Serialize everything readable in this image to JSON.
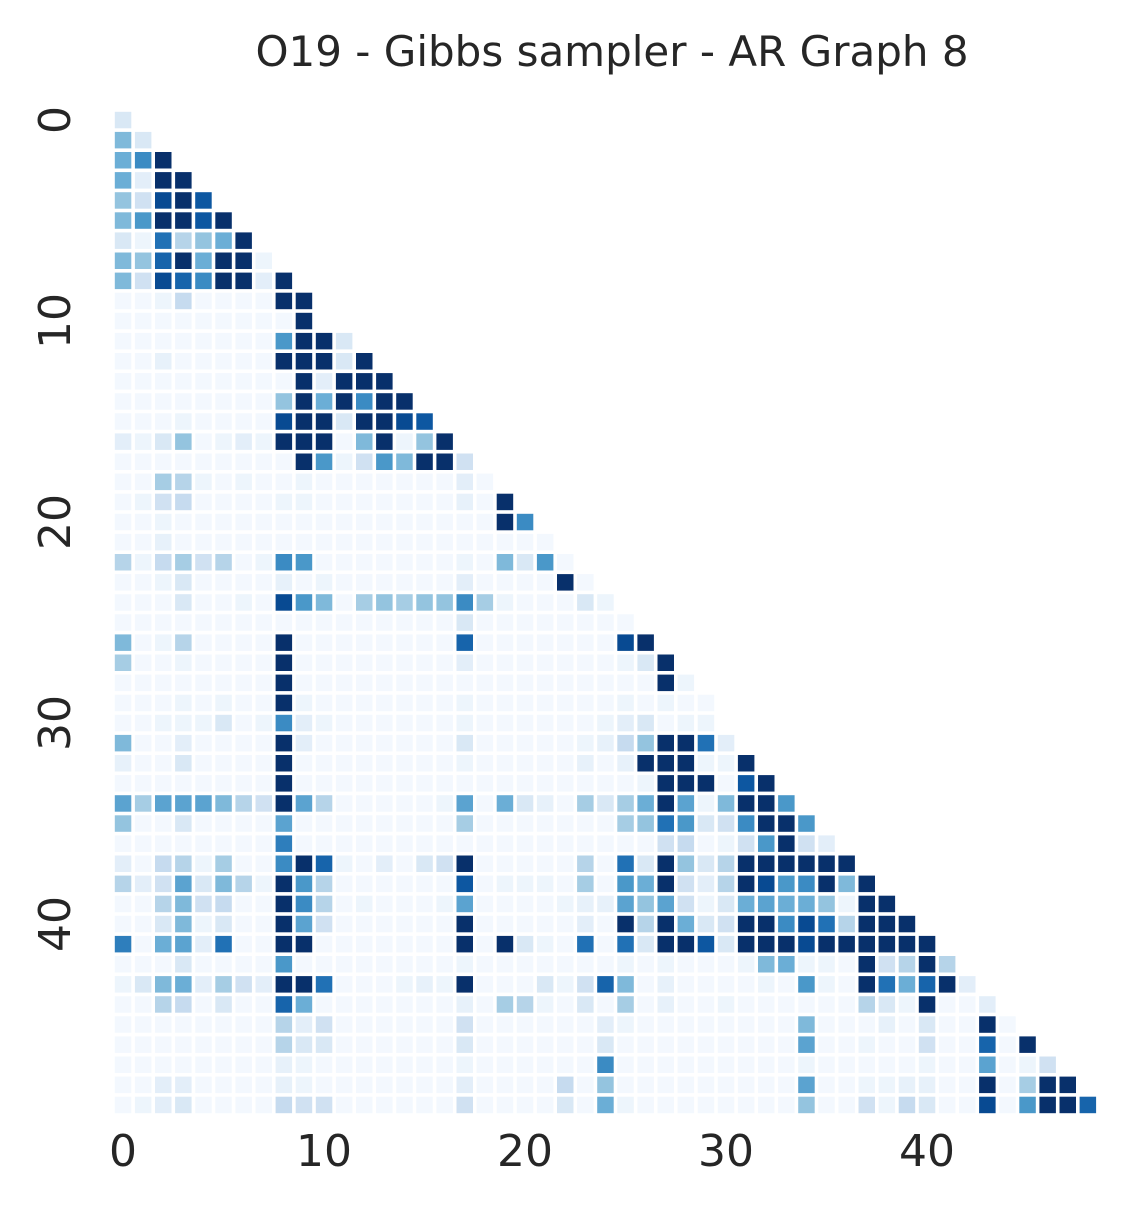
{
  "chart_data": {
    "type": "heatmap",
    "title": "O19 - Gibbs sampler - AR Graph 8",
    "xlabel": "",
    "ylabel": "",
    "size": 49,
    "mask": "lower-triangle-including-diagonal",
    "colormap": "Blues",
    "value_range": [
      0,
      1
    ],
    "x_ticks": [
      0,
      10,
      20,
      30,
      40
    ],
    "y_ticks": [
      0,
      10,
      20,
      30,
      40
    ],
    "x_tick_labels": [
      "0",
      "10",
      "20",
      "30",
      "40"
    ],
    "y_tick_labels": [
      "0",
      "10",
      "20",
      "30",
      "40"
    ],
    "grid": false,
    "colorbar": false,
    "rows": [
      [
        0.15
      ],
      [
        0.45,
        0.15
      ],
      [
        0.5,
        0.65,
        1.0
      ],
      [
        0.5,
        0.1,
        1.0,
        1.0
      ],
      [
        0.4,
        0.2,
        0.9,
        1.0,
        0.85
      ],
      [
        0.45,
        0.6,
        1.0,
        1.0,
        0.85,
        1.0
      ],
      [
        0.15,
        0.05,
        0.75,
        0.3,
        0.4,
        0.5,
        1.0
      ],
      [
        0.45,
        0.4,
        0.8,
        1.0,
        0.5,
        1.0,
        1.0,
        0.05
      ],
      [
        0.45,
        0.2,
        0.9,
        0.8,
        0.65,
        1.0,
        1.0,
        0.1,
        1.0
      ],
      [
        0.02,
        0.02,
        0.05,
        0.25,
        0.02,
        0.02,
        0.02,
        0.02,
        1.0,
        1.0
      ],
      [
        0.02,
        0.02,
        0.02,
        0.02,
        0.02,
        0.02,
        0.02,
        0.02,
        0.02,
        1.0
      ],
      [
        0.02,
        0.02,
        0.02,
        0.02,
        0.02,
        0.02,
        0.02,
        0.02,
        0.6,
        1.0,
        1.0,
        0.15
      ],
      [
        0.02,
        0.02,
        0.08,
        0.02,
        0.02,
        0.02,
        0.02,
        0.02,
        1.0,
        1.0,
        1.0,
        0.15,
        1.0
      ],
      [
        0.02,
        0.02,
        0.02,
        0.02,
        0.02,
        0.02,
        0.02,
        0.02,
        0.02,
        1.0,
        0.1,
        1.0,
        1.0,
        1.0
      ],
      [
        0.02,
        0.02,
        0.02,
        0.02,
        0.02,
        0.02,
        0.02,
        0.02,
        0.4,
        1.0,
        0.5,
        1.0,
        0.65,
        1.0,
        1.0
      ],
      [
        0.02,
        0.02,
        0.02,
        0.05,
        0.02,
        0.02,
        0.02,
        0.02,
        0.9,
        1.0,
        1.0,
        0.15,
        1.0,
        1.0,
        0.9,
        0.85
      ],
      [
        0.1,
        0.05,
        0.15,
        0.4,
        0.02,
        0.05,
        0.1,
        0.05,
        1.0,
        1.0,
        1.0,
        0.02,
        0.45,
        1.0,
        0.05,
        0.4,
        1.0
      ],
      [
        0.02,
        0.02,
        0.02,
        0.02,
        0.02,
        0.02,
        0.02,
        0.02,
        0.02,
        1.0,
        0.6,
        0.05,
        0.2,
        0.6,
        0.45,
        1.0,
        1.0,
        0.2
      ],
      [
        0.02,
        0.02,
        0.35,
        0.3,
        0.05,
        0.02,
        0.05,
        0.02,
        0.02,
        0.05,
        0.02,
        0.02,
        0.02,
        0.02,
        0.02,
        0.02,
        0.02,
        0.1,
        0.02
      ],
      [
        0.02,
        0.05,
        0.2,
        0.25,
        0.02,
        0.02,
        0.02,
        0.02,
        0.05,
        0.05,
        0.02,
        0.02,
        0.02,
        0.02,
        0.02,
        0.02,
        0.02,
        0.08,
        0.02,
        1.0
      ],
      [
        0.02,
        0.02,
        0.05,
        0.02,
        0.02,
        0.02,
        0.02,
        0.02,
        0.02,
        0.02,
        0.02,
        0.02,
        0.02,
        0.02,
        0.02,
        0.02,
        0.02,
        0.02,
        0.02,
        1.0,
        0.65
      ],
      [
        0.02,
        0.02,
        0.08,
        0.02,
        0.02,
        0.02,
        0.02,
        0.02,
        0.02,
        0.02,
        0.02,
        0.02,
        0.02,
        0.02,
        0.02,
        0.02,
        0.02,
        0.02,
        0.02,
        0.02,
        0.02,
        0.02
      ],
      [
        0.3,
        0.05,
        0.25,
        0.35,
        0.2,
        0.3,
        0.02,
        0.05,
        0.65,
        0.6,
        0.02,
        0.02,
        0.02,
        0.02,
        0.02,
        0.02,
        0.02,
        0.05,
        0.02,
        0.45,
        0.15,
        0.6,
        0.02
      ],
      [
        0.02,
        0.02,
        0.05,
        0.15,
        0.02,
        0.02,
        0.02,
        0.02,
        0.08,
        0.02,
        0.05,
        0.02,
        0.02,
        0.02,
        0.02,
        0.02,
        0.02,
        0.1,
        0.02,
        0.02,
        0.02,
        0.02,
        1.0,
        0.02
      ],
      [
        0.02,
        0.02,
        0.02,
        0.15,
        0.02,
        0.02,
        0.05,
        0.02,
        0.9,
        0.6,
        0.45,
        0.02,
        0.35,
        0.4,
        0.35,
        0.4,
        0.4,
        0.65,
        0.35,
        0.05,
        0.02,
        0.02,
        0.02,
        0.15,
        0.05
      ],
      [
        0.02,
        0.02,
        0.02,
        0.02,
        0.02,
        0.02,
        0.02,
        0.02,
        0.02,
        0.02,
        0.02,
        0.02,
        0.02,
        0.02,
        0.02,
        0.02,
        0.02,
        0.15,
        0.02,
        0.02,
        0.02,
        0.02,
        0.02,
        0.02,
        0.02,
        0.02
      ],
      [
        0.45,
        0.02,
        0.05,
        0.3,
        0.02,
        0.02,
        0.02,
        0.02,
        1.0,
        0.02,
        0.02,
        0.02,
        0.02,
        0.02,
        0.02,
        0.02,
        0.02,
        0.8,
        0.02,
        0.02,
        0.02,
        0.02,
        0.02,
        0.02,
        0.02,
        0.9,
        1.0
      ],
      [
        0.35,
        0.02,
        0.02,
        0.05,
        0.02,
        0.02,
        0.02,
        0.02,
        1.0,
        0.02,
        0.02,
        0.02,
        0.02,
        0.02,
        0.02,
        0.02,
        0.02,
        0.1,
        0.02,
        0.02,
        0.02,
        0.02,
        0.02,
        0.02,
        0.02,
        0.05,
        0.15,
        1.0
      ],
      [
        0.02,
        0.02,
        0.02,
        0.02,
        0.02,
        0.02,
        0.02,
        0.02,
        1.0,
        0.02,
        0.02,
        0.02,
        0.02,
        0.02,
        0.02,
        0.02,
        0.02,
        0.02,
        0.02,
        0.02,
        0.02,
        0.02,
        0.02,
        0.02,
        0.02,
        0.02,
        0.02,
        1.0,
        0.05
      ],
      [
        0.02,
        0.02,
        0.02,
        0.05,
        0.02,
        0.05,
        0.02,
        0.02,
        1.0,
        0.05,
        0.02,
        0.02,
        0.02,
        0.02,
        0.02,
        0.02,
        0.02,
        0.05,
        0.02,
        0.02,
        0.02,
        0.02,
        0.02,
        0.02,
        0.02,
        0.05,
        0.02,
        0.05,
        0.02,
        0.02
      ],
      [
        0.02,
        0.02,
        0.05,
        0.05,
        0.05,
        0.15,
        0.02,
        0.05,
        0.65,
        0.1,
        0.05,
        0.02,
        0.02,
        0.02,
        0.02,
        0.02,
        0.02,
        0.05,
        0.02,
        0.02,
        0.02,
        0.02,
        0.02,
        0.02,
        0.05,
        0.1,
        0.15,
        0.02,
        0.05,
        0.05
      ],
      [
        0.45,
        0.02,
        0.02,
        0.1,
        0.02,
        0.02,
        0.02,
        0.02,
        1.0,
        0.1,
        0.02,
        0.02,
        0.02,
        0.02,
        0.02,
        0.02,
        0.02,
        0.15,
        0.02,
        0.02,
        0.02,
        0.02,
        0.02,
        0.05,
        0.08,
        0.25,
        0.4,
        1.0,
        1.0,
        0.75,
        0.1
      ],
      [
        0.08,
        0.02,
        0.02,
        0.15,
        0.02,
        0.02,
        0.02,
        0.02,
        1.0,
        0.02,
        0.02,
        0.02,
        0.02,
        0.02,
        0.02,
        0.02,
        0.02,
        0.05,
        0.02,
        0.02,
        0.02,
        0.02,
        0.02,
        0.08,
        0.02,
        0.08,
        1.0,
        1.0,
        1.0,
        0.05,
        0.05,
        1.0
      ],
      [
        0.02,
        0.02,
        0.02,
        0.02,
        0.02,
        0.02,
        0.02,
        0.02,
        1.0,
        0.02,
        0.02,
        0.02,
        0.02,
        0.02,
        0.02,
        0.02,
        0.02,
        0.02,
        0.02,
        0.02,
        0.02,
        0.02,
        0.02,
        0.02,
        0.02,
        0.02,
        0.05,
        1.0,
        1.0,
        1.0,
        0.02,
        0.85,
        1.0
      ],
      [
        0.55,
        0.35,
        0.55,
        0.55,
        0.55,
        0.45,
        0.3,
        0.2,
        1.0,
        0.55,
        0.3,
        0.02,
        0.02,
        0.02,
        0.02,
        0.02,
        0.05,
        0.55,
        0.02,
        0.5,
        0.15,
        0.08,
        0.02,
        0.35,
        0.15,
        0.35,
        0.5,
        1.0,
        0.55,
        0.05,
        0.45,
        1.0,
        1.0,
        0.6
      ],
      [
        0.4,
        0.02,
        0.02,
        0.15,
        0.02,
        0.02,
        0.02,
        0.02,
        0.55,
        0.02,
        0.02,
        0.02,
        0.02,
        0.02,
        0.02,
        0.02,
        0.02,
        0.35,
        0.02,
        0.02,
        0.02,
        0.02,
        0.02,
        0.02,
        0.02,
        0.35,
        0.4,
        0.75,
        0.6,
        0.15,
        0.2,
        0.65,
        1.0,
        1.0,
        0.6
      ],
      [
        0.02,
        0.02,
        0.02,
        0.02,
        0.02,
        0.02,
        0.02,
        0.02,
        0.7,
        0.02,
        0.02,
        0.02,
        0.02,
        0.02,
        0.02,
        0.02,
        0.02,
        0.02,
        0.02,
        0.02,
        0.02,
        0.02,
        0.02,
        0.02,
        0.02,
        0.02,
        0.02,
        0.2,
        0.25,
        0.02,
        0.05,
        0.2,
        0.6,
        1.0,
        0.2,
        0.1
      ],
      [
        0.1,
        0.02,
        0.25,
        0.3,
        0.05,
        0.35,
        0.02,
        0.02,
        0.65,
        1.0,
        0.8,
        0.05,
        0.02,
        0.1,
        0.02,
        0.15,
        0.2,
        1.0,
        0.02,
        0.02,
        0.02,
        0.02,
        0.02,
        0.3,
        0.02,
        0.75,
        0.15,
        1.0,
        0.4,
        0.15,
        0.3,
        1.0,
        1.0,
        1.0,
        1.0,
        1.0,
        1.0
      ],
      [
        0.3,
        0.1,
        0.2,
        0.55,
        0.15,
        0.45,
        0.3,
        0.05,
        1.0,
        0.6,
        0.3,
        0.02,
        0.02,
        0.02,
        0.02,
        0.02,
        0.02,
        0.85,
        0.02,
        0.05,
        0.05,
        0.05,
        0.02,
        0.35,
        0.02,
        0.6,
        0.5,
        1.0,
        0.2,
        0.1,
        0.3,
        1.0,
        0.9,
        0.6,
        0.65,
        1.0,
        0.45,
        1.0
      ],
      [
        0.02,
        0.02,
        0.3,
        0.45,
        0.2,
        0.25,
        0.02,
        0.02,
        1.0,
        0.65,
        0.3,
        0.02,
        0.05,
        0.02,
        0.02,
        0.02,
        0.05,
        0.55,
        0.02,
        0.02,
        0.02,
        0.02,
        0.05,
        0.08,
        0.08,
        0.55,
        0.4,
        0.55,
        0.2,
        0.05,
        0.15,
        0.5,
        0.55,
        0.5,
        0.5,
        0.4,
        0.05,
        1.0,
        1.0
      ],
      [
        0.02,
        0.02,
        0.15,
        0.45,
        0.05,
        0.15,
        0.02,
        0.02,
        1.0,
        0.55,
        0.2,
        0.02,
        0.02,
        0.02,
        0.02,
        0.02,
        0.02,
        1.0,
        0.02,
        0.02,
        0.02,
        0.02,
        0.02,
        0.1,
        0.02,
        1.0,
        0.3,
        1.0,
        0.5,
        0.15,
        0.2,
        1.0,
        1.0,
        0.65,
        0.9,
        0.75,
        0.3,
        1.0,
        1.0,
        1.0
      ],
      [
        0.7,
        0.02,
        0.5,
        0.55,
        0.1,
        0.75,
        0.02,
        0.02,
        1.0,
        1.0,
        0.02,
        0.02,
        0.02,
        0.02,
        0.02,
        0.02,
        0.02,
        1.0,
        0.02,
        1.0,
        0.15,
        0.05,
        0.02,
        0.75,
        0.02,
        0.75,
        0.15,
        1.0,
        1.0,
        0.85,
        0.15,
        1.0,
        1.0,
        1.0,
        0.9,
        1.0,
        1.0,
        1.0,
        1.0,
        1.0,
        1.0
      ],
      [
        0.02,
        0.02,
        0.02,
        0.15,
        0.02,
        0.02,
        0.02,
        0.02,
        0.6,
        0.02,
        0.02,
        0.02,
        0.02,
        0.02,
        0.02,
        0.02,
        0.02,
        0.05,
        0.02,
        0.02,
        0.02,
        0.02,
        0.02,
        0.02,
        0.02,
        0.05,
        0.02,
        0.05,
        0.02,
        0.02,
        0.02,
        0.05,
        0.45,
        0.5,
        0.05,
        0.05,
        0.02,
        1.0,
        0.2,
        0.3,
        1.0,
        0.3
      ],
      [
        0.05,
        0.15,
        0.45,
        0.5,
        0.1,
        0.35,
        0.2,
        0.1,
        1.0,
        1.0,
        0.75,
        0.02,
        0.02,
        0.02,
        0.05,
        0.08,
        0.05,
        1.0,
        0.02,
        0.02,
        0.02,
        0.15,
        0.05,
        0.2,
        0.8,
        0.45,
        0.02,
        0.08,
        0.02,
        0.02,
        0.02,
        0.02,
        0.05,
        0.02,
        0.6,
        0.05,
        0.02,
        1.0,
        0.75,
        0.5,
        0.8,
        1.0,
        0.1
      ],
      [
        0.02,
        0.02,
        0.3,
        0.25,
        0.02,
        0.15,
        0.02,
        0.02,
        0.8,
        0.5,
        0.02,
        0.02,
        0.02,
        0.02,
        0.02,
        0.02,
        0.02,
        0.08,
        0.02,
        0.35,
        0.3,
        0.05,
        0.02,
        0.15,
        0.02,
        0.35,
        0.02,
        0.08,
        0.02,
        0.02,
        0.05,
        0.02,
        0.02,
        0.02,
        0.02,
        0.02,
        0.02,
        0.3,
        0.15,
        0.05,
        1.0,
        0.02,
        0.02,
        0.1
      ],
      [
        0.02,
        0.02,
        0.02,
        0.02,
        0.02,
        0.02,
        0.02,
        0.02,
        0.3,
        0.1,
        0.2,
        0.02,
        0.02,
        0.02,
        0.02,
        0.02,
        0.02,
        0.2,
        0.02,
        0.02,
        0.02,
        0.02,
        0.02,
        0.02,
        0.1,
        0.05,
        0.02,
        0.02,
        0.02,
        0.02,
        0.02,
        0.02,
        0.02,
        0.02,
        0.45,
        0.02,
        0.02,
        0.02,
        0.08,
        0.02,
        0.15,
        0.02,
        0.02,
        1.0,
        0.02
      ],
      [
        0.02,
        0.02,
        0.02,
        0.02,
        0.02,
        0.02,
        0.02,
        0.02,
        0.3,
        0.15,
        0.15,
        0.02,
        0.02,
        0.02,
        0.02,
        0.02,
        0.02,
        0.15,
        0.02,
        0.02,
        0.02,
        0.02,
        0.02,
        0.02,
        0.15,
        0.02,
        0.02,
        0.02,
        0.02,
        0.02,
        0.02,
        0.02,
        0.02,
        0.02,
        0.55,
        0.02,
        0.02,
        0.05,
        0.02,
        0.02,
        0.2,
        0.02,
        0.02,
        0.8,
        0.02,
        1.0
      ],
      [
        0.02,
        0.02,
        0.02,
        0.02,
        0.02,
        0.02,
        0.02,
        0.02,
        0.08,
        0.05,
        0.02,
        0.02,
        0.02,
        0.02,
        0.02,
        0.02,
        0.02,
        0.05,
        0.02,
        0.02,
        0.02,
        0.02,
        0.02,
        0.02,
        0.65,
        0.02,
        0.02,
        0.02,
        0.02,
        0.02,
        0.02,
        0.02,
        0.02,
        0.02,
        0.05,
        0.02,
        0.02,
        0.02,
        0.02,
        0.02,
        0.05,
        0.02,
        0.02,
        0.55,
        0.02,
        0.05,
        0.2
      ],
      [
        0.02,
        0.02,
        0.1,
        0.1,
        0.02,
        0.02,
        0.02,
        0.02,
        0.08,
        0.05,
        0.02,
        0.02,
        0.02,
        0.02,
        0.02,
        0.02,
        0.02,
        0.1,
        0.02,
        0.02,
        0.02,
        0.02,
        0.25,
        0.02,
        0.4,
        0.02,
        0.02,
        0.02,
        0.02,
        0.02,
        0.02,
        0.02,
        0.02,
        0.02,
        0.55,
        0.02,
        0.02,
        0.05,
        0.05,
        0.08,
        0.08,
        0.02,
        0.02,
        1.0,
        0.02,
        0.35,
        1.0,
        1.0
      ],
      [
        0.02,
        0.05,
        0.1,
        0.15,
        0.02,
        0.02,
        0.02,
        0.02,
        0.25,
        0.2,
        0.2,
        0.02,
        0.02,
        0.02,
        0.02,
        0.02,
        0.02,
        0.2,
        0.02,
        0.02,
        0.02,
        0.02,
        0.15,
        0.02,
        0.5,
        0.05,
        0.02,
        0.02,
        0.02,
        0.02,
        0.02,
        0.02,
        0.02,
        0.02,
        0.4,
        0.02,
        0.02,
        0.2,
        0.05,
        0.25,
        0.15,
        0.02,
        0.02,
        0.9,
        0.02,
        0.6,
        1.0,
        1.0,
        0.8
      ]
    ]
  }
}
